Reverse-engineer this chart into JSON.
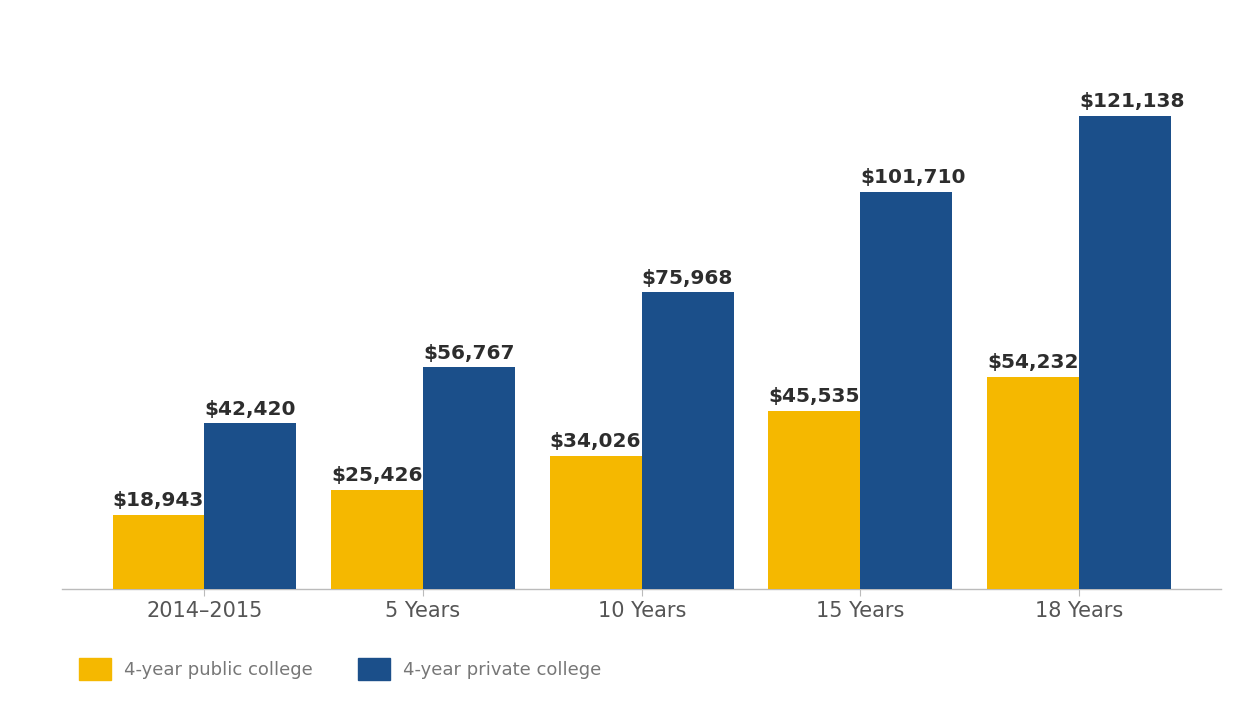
{
  "categories": [
    "2014–2015",
    "5 Years",
    "10 Years",
    "15 Years",
    "18 Years"
  ],
  "public_values": [
    18943,
    25426,
    34026,
    45535,
    54232
  ],
  "private_values": [
    42420,
    56767,
    75968,
    101710,
    121138
  ],
  "public_labels": [
    "$18,943",
    "$25,426",
    "$34,026",
    "$45,535",
    "$54,232"
  ],
  "private_labels": [
    "$42,420",
    "$56,767",
    "$75,968",
    "$101,710",
    "$121,138"
  ],
  "public_color": "#F5B800",
  "private_color": "#1B4F8A",
  "background_color": "#FFFFFF",
  "bar_width": 0.42,
  "ylim": [
    0,
    138000
  ],
  "legend_public": "4-year public college",
  "legend_private": "4-year private college",
  "tick_fontsize": 15,
  "legend_fontsize": 13,
  "value_label_fontsize": 14.5
}
